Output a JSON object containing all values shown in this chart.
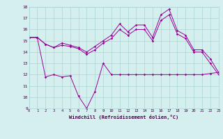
{
  "x": [
    0,
    1,
    2,
    3,
    4,
    5,
    6,
    7,
    8,
    9,
    10,
    11,
    12,
    13,
    14,
    15,
    16,
    17,
    18,
    19,
    20,
    21,
    22,
    23
  ],
  "line1": [
    15.3,
    15.3,
    14.7,
    14.4,
    14.8,
    14.6,
    14.4,
    14.0,
    14.5,
    15.0,
    15.5,
    16.5,
    15.8,
    16.4,
    16.4,
    15.3,
    17.3,
    17.8,
    15.9,
    15.5,
    14.2,
    14.2,
    13.4,
    12.2
  ],
  "line2": [
    15.3,
    15.3,
    14.7,
    14.4,
    14.6,
    14.5,
    14.3,
    13.8,
    14.2,
    14.8,
    15.2,
    16.0,
    15.5,
    16.0,
    16.0,
    15.0,
    16.8,
    17.3,
    15.6,
    15.2,
    14.0,
    14.0,
    13.0,
    12.0
  ],
  "line3": [
    15.3,
    15.3,
    11.8,
    12.0,
    11.8,
    11.9,
    10.1,
    9.0,
    10.5,
    13.0,
    12.0,
    12.0,
    12.0,
    12.0,
    12.0,
    12.0,
    12.0,
    12.0,
    12.0,
    12.0,
    12.0,
    12.0,
    12.1,
    12.2
  ],
  "bg_color": "#d4efee",
  "line_color": "#990099",
  "grid_color": "#aad4d4",
  "xlabel": "Windchill (Refroidissement éolien,°C)",
  "ylim": [
    9,
    18
  ],
  "xlim": [
    0,
    23
  ],
  "yticks": [
    9,
    10,
    11,
    12,
    13,
    14,
    15,
    16,
    17,
    18
  ],
  "xticks": [
    0,
    1,
    2,
    3,
    4,
    5,
    6,
    7,
    8,
    9,
    10,
    11,
    12,
    13,
    14,
    15,
    16,
    17,
    18,
    19,
    20,
    21,
    22,
    23
  ]
}
